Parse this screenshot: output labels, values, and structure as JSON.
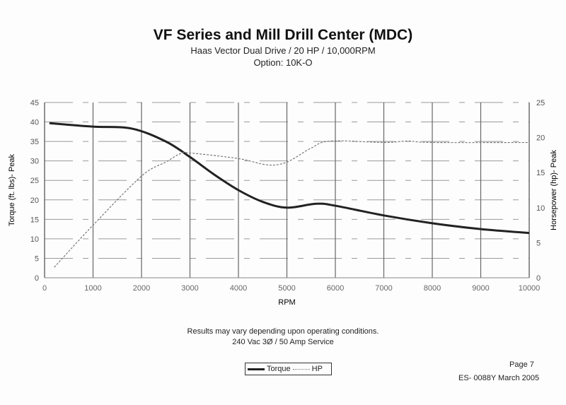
{
  "chart_data": {
    "type": "line",
    "title": "VF Series and Mill Drill Center (MDC)",
    "subtitle": [
      "Haas Vector Dual Drive / 20 HP / 10,000RPM",
      "Option: 10K-O"
    ],
    "xlabel": "RPM",
    "ylabel": "Torque (ft. lbs)- Peak",
    "y2label": "Horsepower (hp)- Peak",
    "xlim": [
      0,
      10000
    ],
    "ylim": [
      0,
      45
    ],
    "y2lim": [
      0,
      25
    ],
    "xticks": [
      "0",
      "1000",
      "2000",
      "3000",
      "4000",
      "5000",
      "6000",
      "7000",
      "8000",
      "9000",
      "10000"
    ],
    "yticks": [
      "0",
      "5",
      "10",
      "15",
      "20",
      "25",
      "30",
      "35",
      "40",
      "45"
    ],
    "y2ticks": [
      "0",
      "5",
      "10",
      "15",
      "20",
      "25"
    ],
    "grid": true,
    "legend_placement": "bottom",
    "series": [
      {
        "name": "Torque",
        "axis": "left",
        "style": "solid-thick",
        "color": "#222222",
        "x": [
          100,
          1000,
          1800,
          2500,
          3000,
          3500,
          4000,
          4500,
          5000,
          5600,
          6000,
          7000,
          8000,
          9000,
          10000
        ],
        "y": [
          39.7,
          38.8,
          38.3,
          35,
          31,
          26.5,
          22.5,
          19.5,
          18,
          19,
          18.5,
          16,
          14,
          12.5,
          11.5
        ]
      },
      {
        "name": "HP",
        "axis": "right",
        "style": "dotted-thin",
        "color": "#777777",
        "x": [
          200,
          1000,
          2000,
          2500,
          2800,
          3000,
          4000,
          4600,
          5000,
          5500,
          5900,
          7000,
          7500,
          8000,
          10000
        ],
        "y": [
          1.5,
          7.5,
          14.5,
          16.5,
          17.7,
          17.8,
          17,
          16.1,
          16.5,
          18.5,
          19.5,
          19.3,
          19.5,
          19.3,
          19.3
        ]
      }
    ]
  },
  "notes": [
    "Results may vary depending upon operating conditions.",
    "240 Vac 3Ø / 50 Amp Service"
  ],
  "footer": {
    "page": "Page 7",
    "doc": "ES- 0088Y March 2005"
  }
}
